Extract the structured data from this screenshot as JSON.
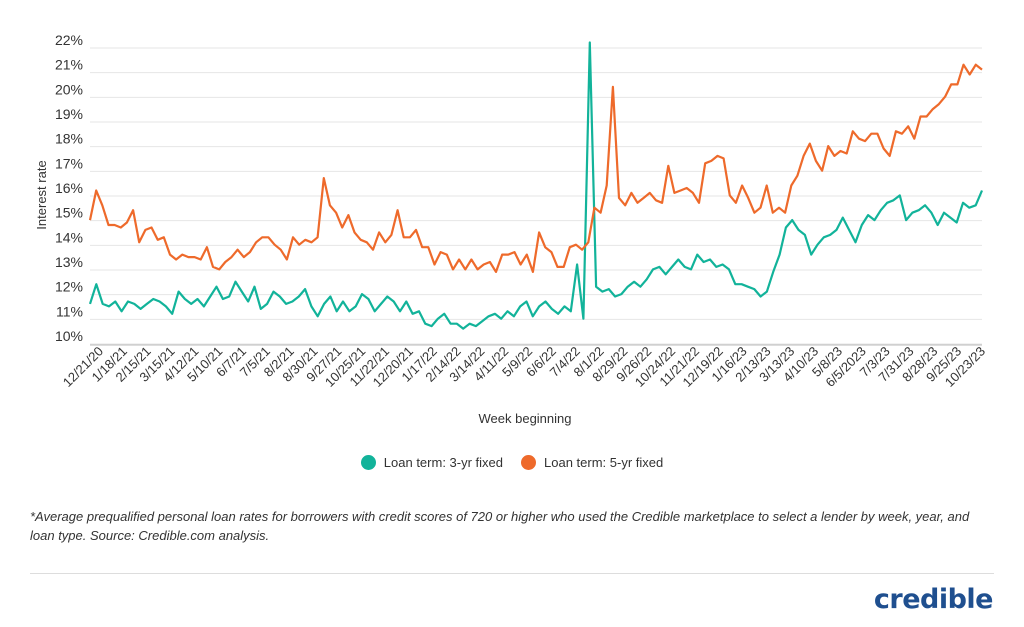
{
  "chart_data": {
    "type": "line",
    "xlabel": "Week beginning",
    "ylabel": "Interest rate",
    "ylim": [
      10,
      22
    ],
    "y_ticks": [
      "10%",
      "11%",
      "12%",
      "13%",
      "14%",
      "15%",
      "16%",
      "17%",
      "18%",
      "19%",
      "20%",
      "21%",
      "22%"
    ],
    "x_tick_labels": [
      "12/21/20",
      "1/18/21",
      "2/15/21",
      "3/15/21",
      "4/12/21",
      "5/10/21",
      "6/7/21",
      "7/5/21",
      "8/2/21",
      "8/30/21",
      "9/27/21",
      "10/25/21",
      "11/22/21",
      "12/20/21",
      "1/17/22",
      "2/14/22",
      "3/14/22",
      "4/11/22",
      "5/9/22",
      "6/6/22",
      "7/4/22",
      "8/1/22",
      "8/29/22",
      "9/26/22",
      "10/24/22",
      "11/21/22",
      "12/19/22",
      "1/16/23",
      "2/13/23",
      "3/13/23",
      "4/10/23",
      "5/8/23",
      "6/5/2023",
      "7/3/23",
      "7/31/23",
      "8/28/23",
      "9/25/23",
      "10/23/23"
    ],
    "grid": true,
    "legend_position": "bottom",
    "series": [
      {
        "name": "Loan term: 3-yr fixed",
        "color": "#12b39a",
        "values": [
          11.3,
          12.1,
          11.3,
          11.2,
          11.4,
          11.0,
          11.4,
          11.3,
          11.1,
          11.3,
          11.5,
          11.4,
          11.2,
          10.9,
          11.8,
          11.5,
          11.3,
          11.5,
          11.2,
          11.6,
          12.0,
          11.5,
          11.6,
          12.2,
          11.8,
          11.4,
          12.0,
          11.1,
          11.3,
          11.8,
          11.6,
          11.3,
          11.4,
          11.6,
          11.9,
          11.2,
          10.8,
          11.3,
          11.6,
          11.0,
          11.4,
          11.0,
          11.2,
          11.7,
          11.5,
          11.0,
          11.3,
          11.6,
          11.4,
          11.0,
          11.4,
          10.9,
          11.0,
          10.5,
          10.4,
          10.7,
          10.9,
          10.5,
          10.5,
          10.3,
          10.5,
          10.4,
          10.6,
          10.8,
          10.9,
          10.7,
          11.0,
          10.8,
          11.2,
          11.4,
          10.8,
          11.2,
          11.4,
          11.1,
          10.9,
          11.2,
          11.0,
          12.9,
          10.7,
          21.9,
          12.0,
          11.8,
          11.9,
          11.6,
          11.7,
          12.0,
          12.2,
          12.0,
          12.3,
          12.7,
          12.8,
          12.5,
          12.8,
          13.1,
          12.8,
          12.7,
          13.3,
          13.0,
          13.1,
          12.8,
          12.9,
          12.7,
          12.1,
          12.1,
          12.0,
          11.9,
          11.6,
          11.8,
          12.6,
          13.3,
          14.4,
          14.7,
          14.3,
          14.1,
          13.3,
          13.7,
          14.0,
          14.1,
          14.3,
          14.8,
          14.3,
          13.8,
          14.5,
          14.9,
          14.7,
          15.1,
          15.4,
          15.5,
          15.7,
          14.7,
          15.0,
          15.1,
          15.3,
          15.0,
          14.5,
          15.0,
          14.8,
          14.6,
          15.4,
          15.2,
          15.3,
          15.9
        ]
      },
      {
        "name": "Loan term: 5-yr fixed",
        "color": "#ee6a2b",
        "values": [
          14.7,
          15.9,
          15.3,
          14.5,
          14.5,
          14.4,
          14.6,
          15.1,
          13.8,
          14.3,
          14.4,
          13.9,
          14.0,
          13.3,
          13.1,
          13.3,
          13.2,
          13.2,
          13.1,
          13.6,
          12.8,
          12.7,
          13.0,
          13.2,
          13.5,
          13.2,
          13.4,
          13.8,
          14.0,
          14.0,
          13.7,
          13.5,
          13.1,
          14.0,
          13.7,
          13.9,
          13.8,
          14.0,
          16.4,
          15.3,
          15.0,
          14.4,
          14.9,
          14.2,
          13.9,
          13.8,
          13.5,
          14.2,
          13.8,
          14.1,
          15.1,
          14.0,
          14.0,
          14.3,
          13.6,
          13.6,
          12.9,
          13.4,
          13.3,
          12.7,
          13.1,
          12.7,
          13.1,
          12.7,
          12.9,
          13.0,
          12.6,
          13.3,
          13.3,
          13.4,
          12.9,
          13.3,
          12.6,
          14.2,
          13.6,
          13.4,
          12.8,
          12.8,
          13.6,
          13.7,
          13.5,
          13.8,
          15.2,
          15.0,
          16.1,
          20.1,
          15.6,
          15.3,
          15.8,
          15.4,
          15.6,
          15.8,
          15.5,
          15.4,
          16.9,
          15.8,
          15.9,
          16.0,
          15.8,
          15.4,
          17.0,
          17.1,
          17.3,
          17.2,
          15.7,
          15.4,
          16.1,
          15.6,
          15.0,
          15.2,
          16.1,
          15.0,
          15.2,
          15.0,
          16.1,
          16.5,
          17.3,
          17.8,
          17.1,
          16.7,
          17.7,
          17.3,
          17.5,
          17.4,
          18.3,
          18.0,
          17.9,
          18.2,
          18.2,
          17.6,
          17.3,
          18.3,
          18.2,
          18.5,
          18.0,
          18.9,
          18.9,
          19.2,
          19.4,
          19.7,
          20.2,
          20.2,
          21.0,
          20.6,
          21.0,
          20.8
        ]
      }
    ]
  },
  "legend": {
    "item1": "Loan term: 3-yr fixed",
    "item2": "Loan term: 5-yr fixed"
  },
  "footnote": "*Average prequalified personal loan rates for borrowers with credit scores of 720 or higher who used the Credible marketplace to select a lender by week, year, and loan type. Source: Credible.com analysis.",
  "logo_text": "credible"
}
